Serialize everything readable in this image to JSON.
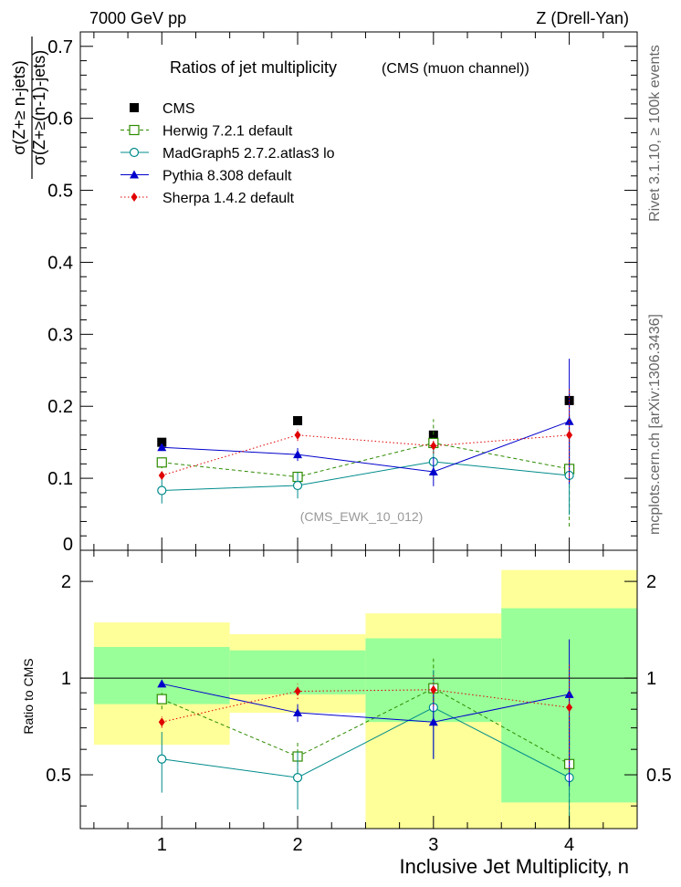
{
  "header": {
    "left": "7000 GeV pp",
    "right": "Z (Drell-Yan)"
  },
  "side_labels": {
    "rivet": "Rivet 3.1.10, ≥ 100k events",
    "mcplots": "mcplots.cern.ch [arXiv:1306.3436]"
  },
  "chart_data": [
    {
      "type": "scatter",
      "title": "Ratios of jet multiplicity",
      "subtitle": "(CMS (muon channel))",
      "annotation": "(CMS_EWK_10_012)",
      "ylabel_num": "σ(Z+≥ n-jets)",
      "ylabel_den": "σ(Z+≥(n-1)-jets)",
      "xlim": [
        0.4,
        4.5
      ],
      "ylim": [
        0,
        0.72
      ],
      "yticks": [
        {
          "v": 0.1,
          "label": "0.1"
        },
        {
          "v": 0.2,
          "label": "0.2"
        },
        {
          "v": 0.3,
          "label": "0.3"
        },
        {
          "v": 0.4,
          "label": "0.4"
        },
        {
          "v": 0.5,
          "label": "0.5"
        },
        {
          "v": 0.6,
          "label": "0.6"
        },
        {
          "v": 0.7,
          "label": "0.7"
        }
      ],
      "y_zero_label": "0",
      "x": [
        1,
        2,
        3,
        4
      ],
      "series": [
        {
          "name": "CMS",
          "color": "#000000",
          "marker": "square-filled",
          "line": "none",
          "values": [
            0.15,
            0.18,
            0.16,
            0.208
          ],
          "err": [
            0.003,
            0.004,
            0.006,
            0.01
          ]
        },
        {
          "name": "Herwig 7.2.1 default",
          "color": "#2e8b00",
          "marker": "square-open",
          "line": "dashed",
          "values": [
            0.122,
            0.102,
            0.149,
            0.113
          ],
          "err": [
            0.008,
            0.007,
            0.033,
            0.08
          ]
        },
        {
          "name": "MadGraph5 2.7.2.atlas3 lo",
          "color": "#008b8b",
          "marker": "circle-open",
          "line": "solid",
          "values": [
            0.083,
            0.09,
            0.123,
            0.104
          ],
          "err": [
            0.018,
            0.018,
            0.02,
            0.055
          ]
        },
        {
          "name": "Pythia 8.308 default",
          "color": "#0000cc",
          "marker": "triangle",
          "line": "solid",
          "values": [
            0.143,
            0.133,
            0.109,
            0.179
          ],
          "err": [
            0.003,
            0.009,
            0.02,
            0.087
          ]
        },
        {
          "name": "Sherpa 1.4.2 default",
          "color": "#e00000",
          "marker": "diamond",
          "line": "dotted",
          "values": [
            0.104,
            0.16,
            0.145,
            0.16
          ],
          "err": [
            0.004,
            0.008,
            0.01,
            0.065
          ]
        }
      ]
    },
    {
      "type": "scatter",
      "ylabel": "Ratio to CMS",
      "xlabel": "Inclusive Jet Multiplicity, n",
      "xlim": [
        0.4,
        4.5
      ],
      "ylim": [
        0.34,
        2.5
      ],
      "scale": "log",
      "xticks": [
        1,
        2,
        3,
        4
      ],
      "yticks": [
        {
          "v": 0.5,
          "label": "0.5"
        },
        {
          "v": 1,
          "label": "1"
        },
        {
          "v": 2,
          "label": "2"
        }
      ],
      "reference_line": 1,
      "bands": [
        {
          "xmin": 0.5,
          "xmax": 1.5,
          "yellow": [
            0.62,
            1.49
          ],
          "green": [
            0.83,
            1.25
          ]
        },
        {
          "xmin": 1.5,
          "xmax": 2.5,
          "yellow": [
            0.78,
            1.37
          ],
          "green": [
            0.89,
            1.22
          ]
        },
        {
          "xmin": 2.5,
          "xmax": 3.5,
          "yellow": [
            0.34,
            1.59
          ],
          "green": [
            0.73,
            1.33
          ]
        },
        {
          "xmin": 3.5,
          "xmax": 4.5,
          "yellow": [
            0.34,
            2.17
          ],
          "green": [
            0.41,
            1.65
          ]
        }
      ],
      "series": [
        {
          "name": "Herwig 7.2.1 default",
          "values": [
            0.86,
            0.57,
            0.93,
            0.54
          ],
          "err": [
            0.06,
            0.06,
            0.22,
            0.38
          ]
        },
        {
          "name": "MadGraph5 2.7.2.atlas3 lo",
          "values": [
            0.56,
            0.49,
            0.81,
            0.49
          ],
          "err": [
            0.12,
            0.1,
            0.25,
            0.25
          ]
        },
        {
          "name": "Pythia 8.308 default",
          "values": [
            0.96,
            0.78,
            0.73,
            0.89
          ],
          "err": [
            0.02,
            0.05,
            0.17,
            0.43
          ]
        },
        {
          "name": "Sherpa 1.4.2 default",
          "values": [
            0.73,
            0.91,
            0.92,
            0.81
          ],
          "err": [
            0.03,
            0.05,
            0.1,
            0.3
          ]
        }
      ]
    }
  ]
}
